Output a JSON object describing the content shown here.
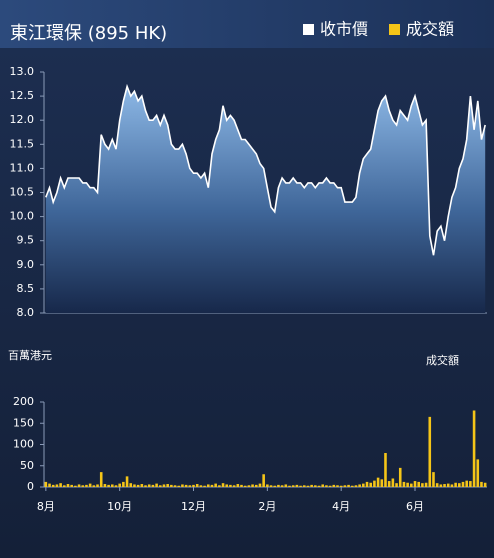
{
  "chart_data": [
    {
      "type": "area",
      "title": "東江環保 (895 HK)",
      "series": [
        {
          "name": "收市價",
          "color": "#ffffff",
          "values": [
            10.4,
            10.6,
            10.3,
            10.5,
            10.8,
            10.6,
            10.8,
            10.8,
            10.8,
            10.8,
            10.7,
            10.7,
            10.6,
            10.6,
            10.5,
            11.7,
            11.5,
            11.4,
            11.6,
            11.4,
            12.0,
            12.4,
            12.7,
            12.5,
            12.6,
            12.4,
            12.5,
            12.2,
            12.0,
            12.0,
            12.1,
            11.9,
            12.1,
            11.9,
            11.5,
            11.4,
            11.4,
            11.5,
            11.3,
            11.0,
            10.9,
            10.9,
            10.8,
            10.9,
            10.6,
            11.3,
            11.6,
            11.8,
            12.3,
            12.0,
            12.1,
            12.0,
            11.8,
            11.6,
            11.6,
            11.5,
            11.4,
            11.3,
            11.1,
            11.0,
            10.6,
            10.2,
            10.1,
            10.6,
            10.8,
            10.7,
            10.7,
            10.8,
            10.7,
            10.7,
            10.6,
            10.7,
            10.7,
            10.6,
            10.7,
            10.7,
            10.8,
            10.7,
            10.7,
            10.6,
            10.6,
            10.3,
            10.3,
            10.3,
            10.4,
            10.9,
            11.2,
            11.3,
            11.4,
            11.8,
            12.2,
            12.4,
            12.5,
            12.2,
            12.0,
            11.9,
            12.2,
            12.1,
            12.0,
            12.3,
            12.5,
            12.2,
            11.9,
            12.0,
            9.6,
            9.2,
            9.7,
            9.8,
            9.5,
            10.0,
            10.4,
            10.6,
            11.0,
            11.2,
            11.6,
            12.5,
            11.8,
            12.4,
            11.6,
            11.9
          ]
        }
      ],
      "ylim": [
        8,
        13
      ],
      "yticks": [
        {
          "value": 8,
          "label": "8.0"
        },
        8.5,
        {
          "value": 9,
          "label": "9.0"
        },
        9.5,
        {
          "value": 10,
          "label": "10.0"
        },
        10.5,
        {
          "value": 11,
          "label": "11.0"
        },
        11.5,
        {
          "value": 12,
          "label": "12.0"
        },
        12.5,
        {
          "value": 13,
          "label": "13.0"
        }
      ]
    },
    {
      "type": "bar",
      "title": "成交額",
      "ylabel": "百萬港元",
      "categories": [
        "8月",
        null,
        null,
        null,
        null,
        null,
        null,
        null,
        null,
        null,
        null,
        null,
        null,
        null,
        null,
        null,
        null,
        null,
        null,
        null,
        "10月",
        null,
        null,
        null,
        null,
        null,
        null,
        null,
        null,
        null,
        null,
        null,
        null,
        null,
        null,
        null,
        null,
        null,
        null,
        null,
        "12月",
        null,
        null,
        null,
        null,
        null,
        null,
        null,
        null,
        null,
        null,
        null,
        null,
        null,
        null,
        null,
        null,
        null,
        null,
        null,
        "2月",
        null,
        null,
        null,
        null,
        null,
        null,
        null,
        null,
        null,
        null,
        null,
        null,
        null,
        null,
        null,
        null,
        null,
        null,
        null,
        "4月",
        null,
        null,
        null,
        null,
        null,
        null,
        null,
        null,
        null,
        null,
        null,
        null,
        null,
        null,
        null,
        null,
        null,
        null,
        null,
        "6月",
        null,
        null,
        null,
        null,
        null,
        null,
        null,
        null,
        null,
        null,
        null,
        null,
        null,
        null,
        null,
        null,
        null,
        null,
        null
      ],
      "series": [
        {
          "name": "成交額",
          "color": "#f5c518",
          "values": [
            12,
            8,
            5,
            6,
            9,
            4,
            7,
            5,
            3,
            6,
            4,
            5,
            8,
            4,
            6,
            35,
            7,
            5,
            6,
            4,
            8,
            12,
            25,
            9,
            6,
            5,
            7,
            4,
            6,
            5,
            8,
            4,
            6,
            7,
            5,
            4,
            3,
            6,
            5,
            4,
            5,
            7,
            4,
            3,
            6,
            5,
            8,
            4,
            9,
            6,
            5,
            4,
            7,
            5,
            3,
            4,
            6,
            5,
            8,
            30,
            6,
            4,
            3,
            5,
            4,
            6,
            3,
            4,
            5,
            3,
            4,
            3,
            5,
            4,
            3,
            6,
            4,
            3,
            5,
            4,
            3,
            4,
            5,
            3,
            4,
            6,
            8,
            12,
            10,
            15,
            22,
            18,
            80,
            14,
            20,
            9,
            45,
            12,
            10,
            8,
            14,
            12,
            9,
            10,
            165,
            35,
            9,
            6,
            7,
            8,
            6,
            10,
            9,
            12,
            15,
            14,
            180,
            65,
            12,
            10
          ]
        }
      ],
      "ylim": [
        0,
        200
      ],
      "yticks": [
        0,
        50,
        100,
        150,
        200
      ]
    }
  ]
}
